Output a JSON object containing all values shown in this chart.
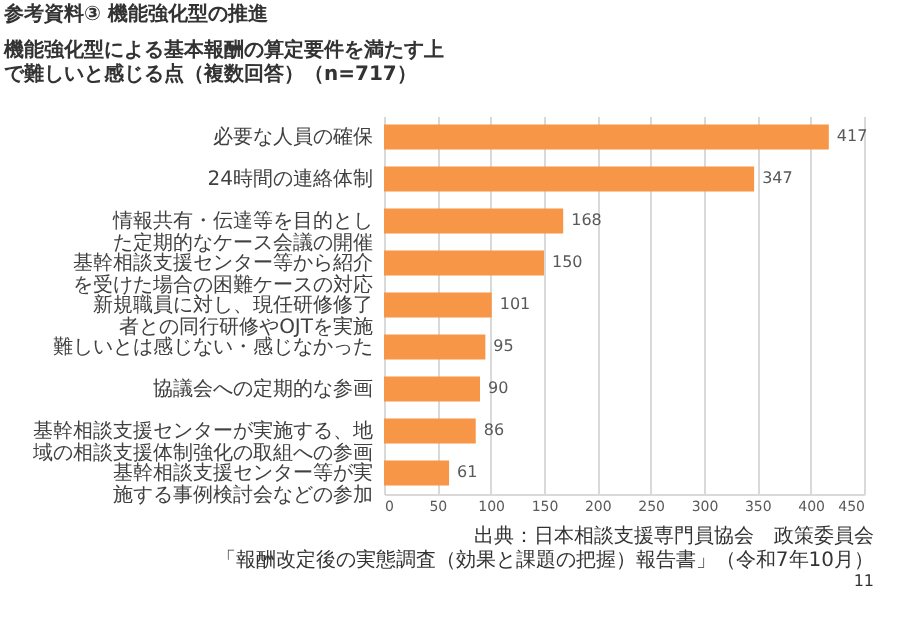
{
  "chart_data": {
    "type": "bar",
    "orientation": "horizontal",
    "title": "機能強化型による基本報酬の算定要件を満たす上で難しいと感じる点（複数回答）（n=717）",
    "annotations": [
      "参考資料③ 機能強化型の推進",
      "出典：日本相談支援専門員協会　政策委員会",
      "「報酬改定後の実態調査（効果と課題の把握）報告書」（令和7年10月）",
      "11"
    ],
    "categories": [
      "必要な人員の確保",
      "24時間の連絡体制",
      "情報共有・伝達等を目的とした定期的なケース会議の開催",
      "基幹相談支援センター等から紹介を受けた場合の困難ケースの対応",
      "新規職員に対し、現任研修修了者との同行研修やOJTを実施",
      "難しいとは感じない・感じなかった",
      "協議会への定期的な参画",
      "基幹相談支援センターが実施する、地域の相談支援体制強化の取組への参画",
      "基幹相談支援センター等が実施する事例検討会などの参加"
    ],
    "values": [
      417,
      347,
      168,
      150,
      101,
      95,
      90,
      86,
      61
    ],
    "color": "#f79646",
    "xlim": [
      0,
      450
    ],
    "xticks": [
      0,
      50,
      100,
      150,
      200,
      250,
      300,
      350,
      400,
      450
    ],
    "grid": "x",
    "data_labels": true
  }
}
